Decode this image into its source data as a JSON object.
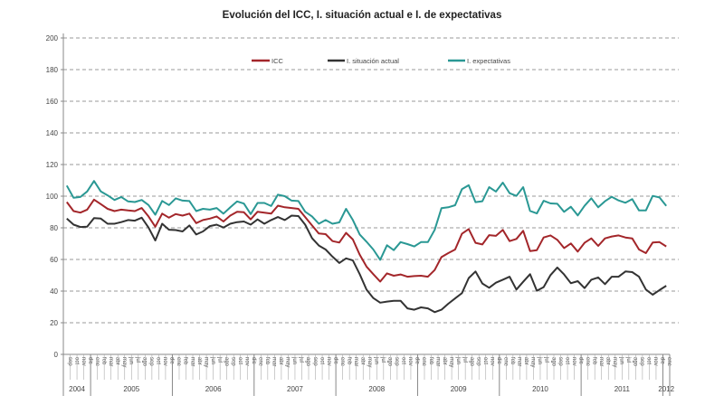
{
  "chart_data": {
    "type": "line",
    "title": "Evolución del ICC, I. situación actual e I. de expectativas",
    "xlabel": "",
    "ylabel": "",
    "ylim": [
      0,
      200
    ],
    "yticks": [
      0,
      20,
      40,
      60,
      80,
      100,
      120,
      140,
      160,
      180,
      200
    ],
    "grid": "horizontal dashed",
    "legend_position": "top",
    "month_labels": [
      "ene",
      "feb",
      "mar",
      "abr",
      "may",
      "jun",
      "jul",
      "ago",
      "sep",
      "oct",
      "nov",
      "dic"
    ],
    "start": "2004-09",
    "end": "2012-01",
    "years": [
      {
        "label": "2004",
        "months": 4
      },
      {
        "label": "2005",
        "months": 12
      },
      {
        "label": "2006",
        "months": 12
      },
      {
        "label": "2007",
        "months": 12
      },
      {
        "label": "2008",
        "months": 12
      },
      {
        "label": "2009",
        "months": 12
      },
      {
        "label": "2010",
        "months": 12
      },
      {
        "label": "2011",
        "months": 12
      },
      {
        "label": "2012",
        "months": 1
      }
    ],
    "series": [
      {
        "name": "ICC",
        "color": "#a3262a",
        "values": [
          96.3,
          90.6,
          89.6,
          91.5,
          97.8,
          95,
          92,
          90.6,
          91.5,
          91,
          90.6,
          92.5,
          87.2,
          80.7,
          89,
          86.4,
          88.7,
          87.7,
          89,
          83,
          84.9,
          85.8,
          87.2,
          84,
          87.7,
          90.2,
          89.8,
          85.3,
          90.2,
          89.6,
          89,
          94,
          93,
          92.5,
          92,
          86.8,
          81.5,
          76.4,
          76,
          71.6,
          70.7,
          76.8,
          72.6,
          63,
          55.5,
          50.7,
          46,
          51.2,
          49.7,
          50.5,
          49.1,
          49.5,
          49.7,
          49.1,
          53.3,
          61.5,
          64,
          66.3,
          76.2,
          79.2,
          70.5,
          69.5,
          75.4,
          74.9,
          78.7,
          71.6,
          73,
          78.1,
          65.3,
          65.9,
          73.9,
          75.2,
          72.4,
          67.2,
          70.1,
          65,
          70.5,
          73.3,
          68.6,
          73.3,
          74.5,
          75.2,
          73.9,
          73.3,
          66.3,
          64,
          70.7,
          71,
          68.2
        ]
      },
      {
        "name": "I. situación actual",
        "color": "#333333",
        "values": [
          85.8,
          82,
          80.5,
          80.7,
          86.2,
          85.8,
          82.6,
          82.6,
          83.6,
          84.9,
          84.5,
          86.4,
          80.2,
          72,
          82.6,
          78.8,
          78.6,
          77.7,
          81.5,
          75.8,
          77.7,
          81.1,
          82,
          80.2,
          82.6,
          83.6,
          84,
          82,
          85.3,
          82.6,
          84.9,
          86.8,
          84.9,
          87.7,
          87.4,
          82,
          73.5,
          68.8,
          66.3,
          61.8,
          57.8,
          60.7,
          59.4,
          50.7,
          40.9,
          35.6,
          32.7,
          33.4,
          33.9,
          33.9,
          29.1,
          28.2,
          29.7,
          29.1,
          26.7,
          28.2,
          32,
          35.4,
          38.7,
          48.2,
          52.4,
          44.8,
          42.1,
          45.3,
          47.2,
          49.1,
          41,
          45.9,
          50.7,
          40.2,
          42.5,
          50.1,
          54.9,
          50.5,
          45,
          46.3,
          41.9,
          47.2,
          48.6,
          44.4,
          49.1,
          49.1,
          52.4,
          52,
          49.1,
          41,
          37.7,
          40.6,
          43.4
        ]
      },
      {
        "name": "I. expectativas",
        "color": "#2a9894",
        "values": [
          106.7,
          99,
          99.5,
          103,
          109.6,
          103,
          100.5,
          97.6,
          99.5,
          96.7,
          96.3,
          97.6,
          94.4,
          88.3,
          97,
          94.4,
          98.6,
          97.2,
          96.9,
          90.6,
          92,
          91.5,
          92.5,
          89,
          92.9,
          96.7,
          95.3,
          88.7,
          95.7,
          95.7,
          93.8,
          101,
          100,
          97.2,
          96.9,
          90.2,
          87.2,
          82.6,
          84.9,
          82.6,
          83.4,
          92,
          84.9,
          75.8,
          71.2,
          66.3,
          59.8,
          69,
          65.9,
          71,
          69.7,
          68.2,
          71,
          71,
          78.7,
          92.4,
          93,
          94.3,
          104.4,
          106.9,
          96.2,
          96.8,
          105.7,
          102.9,
          108.6,
          101.9,
          100.2,
          105.7,
          90.7,
          89.1,
          97.1,
          95.4,
          95.2,
          90.1,
          93.3,
          87.8,
          93.9,
          98.7,
          93,
          96.8,
          99.6,
          97.3,
          95.8,
          98.1,
          91,
          91,
          100.2,
          99.2,
          93.9
        ]
      }
    ]
  }
}
